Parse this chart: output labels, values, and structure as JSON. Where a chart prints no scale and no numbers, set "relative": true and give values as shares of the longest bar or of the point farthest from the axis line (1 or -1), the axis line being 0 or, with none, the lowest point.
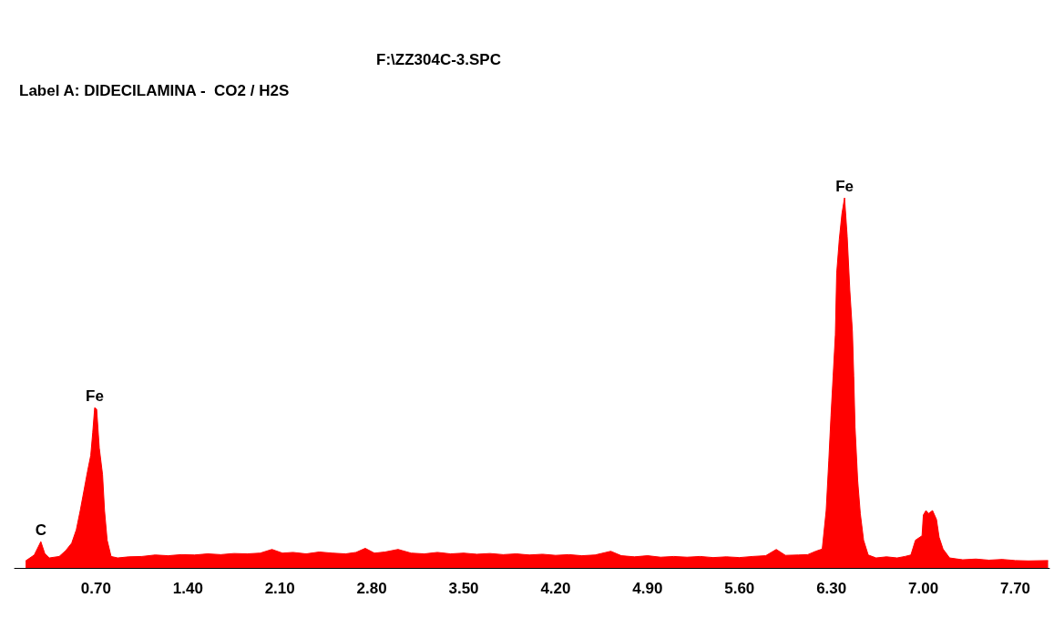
{
  "chart_data": {
    "type": "area",
    "title": "F:\\ZZ304C-3.SPC",
    "subtitle": "Label A: DIDECILAMINA -  CO2 / H2S",
    "relative": true,
    "xlim": [
      0.08,
      7.96
    ],
    "xticks": [
      {
        "value": 0.7,
        "label": "0.70"
      },
      {
        "value": 1.4,
        "label": "1.40"
      },
      {
        "value": 2.1,
        "label": "2.10"
      },
      {
        "value": 2.8,
        "label": "2.80"
      },
      {
        "value": 3.5,
        "label": "3.50"
      },
      {
        "value": 4.2,
        "label": "4.20"
      },
      {
        "value": 4.9,
        "label": "4.90"
      },
      {
        "value": 5.6,
        "label": "5.60"
      },
      {
        "value": 6.3,
        "label": "6.30"
      },
      {
        "value": 7.0,
        "label": "7.00"
      },
      {
        "value": 7.7,
        "label": "7.70"
      }
    ],
    "x": [
      0.164,
      0.23,
      0.28,
      0.31,
      0.345,
      0.42,
      0.47,
      0.515,
      0.55,
      0.58,
      0.61,
      0.635,
      0.66,
      0.675,
      0.69,
      0.705,
      0.725,
      0.75,
      0.765,
      0.785,
      0.815,
      0.865,
      0.95,
      1.05,
      1.15,
      1.25,
      1.35,
      1.45,
      1.55,
      1.65,
      1.75,
      1.85,
      1.95,
      2.04,
      2.12,
      2.2,
      2.3,
      2.4,
      2.5,
      2.6,
      2.68,
      2.75,
      2.82,
      2.9,
      3.0,
      3.1,
      3.2,
      3.3,
      3.4,
      3.5,
      3.6,
      3.7,
      3.8,
      3.9,
      4.0,
      4.1,
      4.2,
      4.3,
      4.4,
      4.5,
      4.62,
      4.7,
      4.8,
      4.9,
      5.0,
      5.1,
      5.2,
      5.3,
      5.4,
      5.5,
      5.6,
      5.7,
      5.8,
      5.88,
      5.95,
      6.05,
      6.12,
      6.18,
      6.23,
      6.26,
      6.28,
      6.297,
      6.313,
      6.33,
      6.34,
      6.36,
      6.38,
      6.4,
      6.42,
      6.44,
      6.46,
      6.47,
      6.48,
      6.5,
      6.52,
      6.545,
      6.58,
      6.64,
      6.72,
      6.8,
      6.86,
      6.905,
      6.94,
      6.99,
      7.0,
      7.02,
      7.04,
      7.07,
      7.1,
      7.12,
      7.15,
      7.2,
      7.3,
      7.4,
      7.5,
      7.6,
      7.7,
      7.8,
      7.95
    ],
    "series": [
      {
        "color": "#ff0000",
        "values": [
          0.019,
          0.035,
          0.071,
          0.039,
          0.027,
          0.031,
          0.047,
          0.067,
          0.103,
          0.155,
          0.212,
          0.26,
          0.304,
          0.365,
          0.433,
          0.429,
          0.324,
          0.252,
          0.155,
          0.075,
          0.031,
          0.027,
          0.03,
          0.031,
          0.035,
          0.033,
          0.036,
          0.035,
          0.038,
          0.036,
          0.039,
          0.038,
          0.04,
          0.05,
          0.04,
          0.042,
          0.038,
          0.043,
          0.04,
          0.038,
          0.042,
          0.053,
          0.04,
          0.043,
          0.05,
          0.04,
          0.038,
          0.042,
          0.038,
          0.04,
          0.037,
          0.039,
          0.036,
          0.038,
          0.035,
          0.037,
          0.034,
          0.036,
          0.033,
          0.035,
          0.045,
          0.033,
          0.03,
          0.033,
          0.029,
          0.031,
          0.029,
          0.031,
          0.028,
          0.03,
          0.028,
          0.031,
          0.033,
          0.05,
          0.034,
          0.035,
          0.036,
          0.045,
          0.051,
          0.155,
          0.29,
          0.413,
          0.518,
          0.63,
          0.796,
          0.888,
          0.957,
          1,
          0.896,
          0.751,
          0.638,
          0.518,
          0.38,
          0.236,
          0.147,
          0.075,
          0.035,
          0.027,
          0.03,
          0.027,
          0.031,
          0.035,
          0.075,
          0.087,
          0.143,
          0.155,
          0.147,
          0.155,
          0.131,
          0.083,
          0.051,
          0.027,
          0.022,
          0.024,
          0.021,
          0.023,
          0.02,
          0.019,
          0.02
        ]
      }
    ],
    "annotations": [
      {
        "text": "C",
        "x": 0.28,
        "y": 0.071
      },
      {
        "text": "Fe",
        "x": 0.69,
        "y": 0.433
      },
      {
        "text": "Fe",
        "x": 6.4,
        "y": 1
      }
    ]
  }
}
